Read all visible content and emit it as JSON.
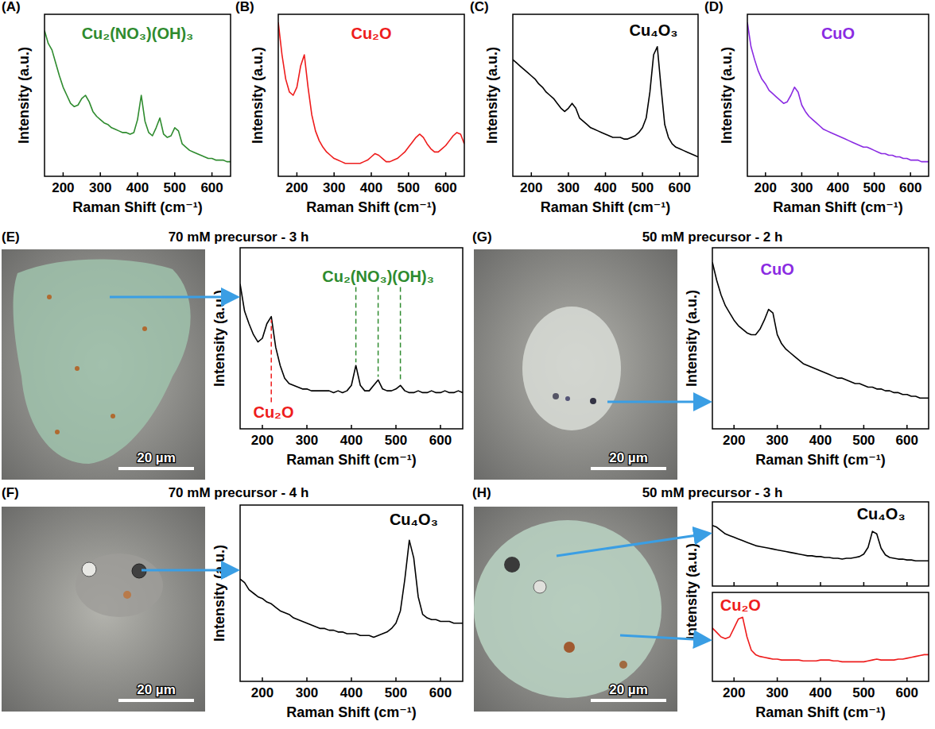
{
  "chart_data": [
    {
      "type": "line",
      "x": [
        150,
        160,
        170,
        180,
        190,
        200,
        210,
        220,
        230,
        240,
        250,
        260,
        270,
        280,
        290,
        300,
        310,
        320,
        330,
        340,
        350,
        360,
        370,
        380,
        390,
        400,
        410,
        420,
        430,
        440,
        450,
        460,
        470,
        480,
        490,
        500,
        510,
        520,
        530,
        540,
        550,
        560,
        570,
        580,
        590,
        600,
        610,
        620,
        630,
        640,
        650
      ],
      "xlim": [
        150,
        650
      ],
      "ylim": [
        0,
        100
      ],
      "xticks": [
        200,
        300,
        400,
        500,
        600
      ],
      "tick_labels": "x",
      "x_label": "Raman Shift (cm⁻¹)",
      "y_label": "Intensity (a.u.)",
      "series": [
        {
          "color": "#2e8b2e",
          "values": [
            90,
            82,
            78,
            70,
            62,
            55,
            50,
            45,
            43,
            44,
            48,
            50,
            46,
            40,
            37,
            35,
            33,
            32,
            30,
            29,
            28,
            27,
            27,
            26,
            27,
            35,
            50,
            34,
            27,
            25,
            30,
            36,
            26,
            24,
            25,
            30,
            28,
            20,
            18,
            16,
            15,
            14,
            13,
            12,
            11,
            11,
            10,
            10,
            10,
            9,
            9
          ]
        }
      ],
      "annotations": [
        {
          "text": "Cu₂(NO₃)(OH)₃",
          "color": "#2e8b2e",
          "x": 400,
          "y": 88
        }
      ]
    },
    {
      "type": "line",
      "x": [
        150,
        160,
        170,
        180,
        190,
        200,
        210,
        220,
        230,
        240,
        250,
        260,
        270,
        280,
        290,
        300,
        310,
        320,
        330,
        340,
        350,
        360,
        370,
        380,
        390,
        400,
        410,
        420,
        430,
        440,
        450,
        460,
        470,
        480,
        490,
        500,
        510,
        520,
        530,
        540,
        550,
        560,
        570,
        580,
        590,
        600,
        610,
        620,
        630,
        640,
        650
      ],
      "xlim": [
        150,
        650
      ],
      "ylim": [
        0,
        100
      ],
      "xticks": [
        200,
        300,
        400,
        500,
        600
      ],
      "tick_labels": "x",
      "x_label": "Raman Shift (cm⁻¹)",
      "y_label": "Intensity (a.u.)",
      "series": [
        {
          "color": "#ee1c1c",
          "values": [
            95,
            75,
            60,
            52,
            50,
            55,
            68,
            75,
            55,
            38,
            28,
            22,
            18,
            15,
            13,
            11,
            10,
            9,
            8,
            8,
            8,
            8,
            8,
            9,
            10,
            12,
            14,
            13,
            11,
            9,
            9,
            10,
            11,
            13,
            15,
            18,
            21,
            24,
            26,
            24,
            20,
            17,
            15,
            15,
            17,
            19,
            22,
            25,
            27,
            26,
            20
          ]
        }
      ],
      "annotations": [
        {
          "text": "Cu₂O",
          "color": "#ee1c1c",
          "x": 400,
          "y": 88
        }
      ]
    },
    {
      "type": "line",
      "x": [
        150,
        160,
        170,
        180,
        190,
        200,
        210,
        220,
        230,
        240,
        250,
        260,
        270,
        280,
        290,
        300,
        310,
        320,
        330,
        340,
        350,
        360,
        370,
        380,
        390,
        400,
        410,
        420,
        430,
        440,
        450,
        460,
        470,
        480,
        490,
        500,
        510,
        520,
        530,
        540,
        550,
        560,
        570,
        580,
        590,
        600,
        610,
        620,
        630,
        640,
        650
      ],
      "xlim": [
        150,
        650
      ],
      "ylim": [
        0,
        100
      ],
      "xticks": [
        200,
        300,
        400,
        500,
        600
      ],
      "tick_labels": "x",
      "x_label": "Raman Shift (cm⁻¹)",
      "y_label": "Intensity (a.u.)",
      "series": [
        {
          "color": "#000000",
          "values": [
            72,
            70,
            68,
            66,
            64,
            62,
            60,
            57,
            55,
            52,
            50,
            48,
            45,
            42,
            40,
            42,
            45,
            42,
            36,
            34,
            32,
            30,
            29,
            28,
            27,
            26,
            25,
            24,
            24,
            24,
            23,
            23,
            24,
            25,
            27,
            30,
            36,
            52,
            75,
            80,
            55,
            32,
            24,
            20,
            18,
            17,
            16,
            15,
            14,
            13,
            12
          ]
        }
      ],
      "annotations": [
        {
          "text": "Cu₄O₃",
          "color": "#000000",
          "x": 530,
          "y": 90
        }
      ]
    },
    {
      "type": "line",
      "x": [
        150,
        160,
        170,
        180,
        190,
        200,
        210,
        220,
        230,
        240,
        250,
        260,
        270,
        280,
        290,
        300,
        310,
        320,
        330,
        340,
        350,
        360,
        370,
        380,
        390,
        400,
        410,
        420,
        430,
        440,
        450,
        460,
        470,
        480,
        490,
        500,
        510,
        520,
        530,
        540,
        550,
        560,
        570,
        580,
        590,
        600,
        610,
        620,
        630,
        640,
        650
      ],
      "xlim": [
        150,
        650
      ],
      "ylim": [
        0,
        100
      ],
      "xticks": [
        200,
        300,
        400,
        500,
        600
      ],
      "tick_labels": "x",
      "x_label": "Raman Shift (cm⁻¹)",
      "y_label": "Intensity (a.u.)",
      "series": [
        {
          "color": "#8a2be2",
          "values": [
            95,
            80,
            72,
            65,
            60,
            57,
            53,
            51,
            49,
            47,
            45,
            46,
            50,
            55,
            52,
            44,
            40,
            37,
            35,
            33,
            31,
            29,
            28,
            27,
            26,
            25,
            24,
            23,
            22,
            21,
            20,
            19,
            18,
            18,
            17,
            16,
            15,
            14,
            14,
            13,
            13,
            12,
            12,
            11,
            11,
            10,
            10,
            10,
            9,
            9,
            9
          ]
        }
      ],
      "annotations": [
        {
          "text": "CuO",
          "color": "#8a2be2",
          "x": 400,
          "y": 88
        }
      ]
    },
    {
      "type": "line",
      "x": [
        150,
        160,
        170,
        180,
        190,
        200,
        210,
        220,
        230,
        240,
        250,
        260,
        270,
        280,
        290,
        300,
        310,
        320,
        330,
        340,
        350,
        360,
        370,
        380,
        390,
        400,
        410,
        420,
        430,
        440,
        450,
        460,
        470,
        480,
        490,
        500,
        510,
        520,
        530,
        540,
        550,
        560,
        570,
        580,
        590,
        600,
        610,
        620,
        630,
        640,
        650
      ],
      "xlim": [
        150,
        650
      ],
      "ylim": [
        0,
        100
      ],
      "xticks": [
        200,
        300,
        400,
        500,
        600
      ],
      "tick_labels": "x",
      "x_label": "Raman Shift (cm⁻¹)",
      "y_label": "Intensity (a.u.)",
      "series": [
        {
          "color": "#000000",
          "values": [
            80,
            65,
            58,
            52,
            48,
            50,
            58,
            62,
            45,
            35,
            28,
            25,
            24,
            23,
            22,
            22,
            21,
            21,
            21,
            21,
            21,
            20,
            21,
            20,
            21,
            24,
            35,
            24,
            21,
            21,
            24,
            27,
            22,
            21,
            21,
            22,
            24,
            21,
            20,
            20,
            21,
            20,
            20,
            21,
            20,
            20,
            21,
            20,
            20,
            21,
            20
          ]
        }
      ],
      "annotations": [
        {
          "text": "Cu₂(NO₃)(OH)₃",
          "color": "#2e8b2e",
          "x": 460,
          "y": 84,
          "lines": [
            410,
            460,
            510
          ]
        },
        {
          "text": "Cu₂O",
          "color": "#ee1c1c",
          "x": 225,
          "y": 9,
          "lines": [
            220
          ]
        }
      ]
    },
    {
      "type": "line",
      "x": [
        150,
        160,
        170,
        180,
        190,
        200,
        210,
        220,
        230,
        240,
        250,
        260,
        270,
        280,
        290,
        300,
        310,
        320,
        330,
        340,
        350,
        360,
        370,
        380,
        390,
        400,
        410,
        420,
        430,
        440,
        450,
        460,
        470,
        480,
        490,
        500,
        510,
        520,
        530,
        540,
        550,
        560,
        570,
        580,
        590,
        600,
        610,
        620,
        630,
        640,
        650
      ],
      "xlim": [
        150,
        650
      ],
      "ylim": [
        0,
        100
      ],
      "xticks": [
        200,
        300,
        400,
        500,
        600
      ],
      "tick_labels": "x",
      "x_label": "Raman Shift (cm⁻¹)",
      "y_label": "Intensity (a.u.)",
      "series": [
        {
          "color": "#000000",
          "values": [
            58,
            56,
            52,
            50,
            48,
            47,
            45,
            44,
            42,
            40,
            39,
            38,
            36,
            35,
            34,
            33,
            32,
            31,
            30,
            30,
            29,
            29,
            28,
            28,
            27,
            27,
            27,
            26,
            26,
            26,
            25,
            26,
            27,
            28,
            30,
            33,
            40,
            58,
            80,
            70,
            48,
            38,
            36,
            35,
            35,
            34,
            34,
            34,
            33,
            33,
            33
          ]
        }
      ],
      "annotations": [
        {
          "text": "Cu₄O₃",
          "color": "#000000",
          "x": 540,
          "y": 92
        }
      ]
    },
    {
      "type": "line",
      "x": [
        150,
        160,
        170,
        180,
        190,
        200,
        210,
        220,
        230,
        240,
        250,
        260,
        270,
        280,
        290,
        300,
        310,
        320,
        330,
        340,
        350,
        360,
        370,
        380,
        390,
        400,
        410,
        420,
        430,
        440,
        450,
        460,
        470,
        480,
        490,
        500,
        510,
        520,
        530,
        540,
        550,
        560,
        570,
        580,
        590,
        600,
        610,
        620,
        630,
        640,
        650
      ],
      "xlim": [
        150,
        650
      ],
      "ylim": [
        0,
        100
      ],
      "xticks": [
        200,
        300,
        400,
        500,
        600
      ],
      "tick_labels": "x",
      "x_label": "Raman Shift (cm⁻¹)",
      "y_label": "Intensity (a.u.)",
      "series": [
        {
          "color": "#000000",
          "values": [
            92,
            82,
            74,
            68,
            64,
            60,
            57,
            55,
            53,
            52,
            52,
            55,
            60,
            66,
            64,
            52,
            47,
            44,
            42,
            40,
            38,
            36,
            35,
            34,
            33,
            32,
            31,
            30,
            29,
            28,
            28,
            27,
            26,
            25,
            25,
            24,
            23,
            23,
            22,
            22,
            21,
            21,
            20,
            20,
            19,
            19,
            18,
            18,
            17,
            17,
            17
          ]
        }
      ],
      "annotations": [
        {
          "text": "CuO",
          "color": "#8a2be2",
          "x": 300,
          "y": 88
        }
      ]
    },
    {
      "type": "line",
      "x": [
        150,
        160,
        170,
        180,
        190,
        200,
        210,
        220,
        230,
        240,
        250,
        260,
        270,
        280,
        290,
        300,
        310,
        320,
        330,
        340,
        350,
        360,
        370,
        380,
        390,
        400,
        410,
        420,
        430,
        440,
        450,
        460,
        470,
        480,
        490,
        500,
        510,
        520,
        530,
        540,
        550,
        560,
        570,
        580,
        590,
        600,
        610,
        620,
        630,
        640,
        650
      ],
      "xlim": [
        150,
        650
      ],
      "ylim": [
        0,
        100
      ],
      "xticks": [
        200,
        300,
        400,
        500,
        600
      ],
      "tick_labels": false,
      "series": [
        {
          "color": "#000000",
          "values": [
            72,
            70,
            66,
            62,
            60,
            58,
            56,
            54,
            52,
            50,
            48,
            47,
            46,
            45,
            44,
            43,
            42,
            41,
            40,
            39,
            38,
            37,
            36,
            36,
            35,
            35,
            34,
            34,
            33,
            33,
            32,
            33,
            33,
            34,
            35,
            38,
            46,
            65,
            62,
            45,
            37,
            34,
            33,
            32,
            32,
            31,
            31,
            30,
            30,
            30,
            30
          ]
        }
      ],
      "annotations": [
        {
          "text": "Cu₄O₃",
          "color": "#000000",
          "x": 540,
          "y": 86
        }
      ]
    },
    {
      "type": "line",
      "x": [
        150,
        160,
        170,
        180,
        190,
        200,
        210,
        220,
        230,
        240,
        250,
        260,
        270,
        280,
        290,
        300,
        310,
        320,
        330,
        340,
        350,
        360,
        370,
        380,
        390,
        400,
        410,
        420,
        430,
        440,
        450,
        460,
        470,
        480,
        490,
        500,
        510,
        520,
        530,
        540,
        550,
        560,
        570,
        580,
        590,
        600,
        610,
        620,
        630,
        640,
        650
      ],
      "xlim": [
        150,
        650
      ],
      "ylim": [
        0,
        100
      ],
      "xticks": [
        200,
        300,
        400,
        500,
        600
      ],
      "tick_labels": "x",
      "x_label": "Raman Shift (cm⁻¹)",
      "y_label": "Intensity (a.u.)",
      "series": [
        {
          "color": "#ee1c1c",
          "values": [
            60,
            55,
            50,
            48,
            50,
            60,
            70,
            72,
            50,
            35,
            30,
            28,
            27,
            26,
            25,
            25,
            24,
            24,
            24,
            24,
            24,
            23,
            23,
            23,
            23,
            24,
            24,
            24,
            23,
            23,
            22,
            22,
            22,
            22,
            22,
            22,
            23,
            24,
            25,
            24,
            24,
            24,
            24,
            25,
            25,
            26,
            27,
            28,
            29,
            30,
            30
          ]
        }
      ],
      "annotations": [
        {
          "text": "Cu₂O",
          "color": "#ee1c1c",
          "x": 215,
          "y": 86
        }
      ]
    }
  ],
  "figure": {
    "letters": [
      "(A)",
      "(B)",
      "(C)",
      "(D)",
      "(E)",
      "(F)",
      "(G)",
      "(H)"
    ],
    "images": [
      {
        "title": "70 mM precursor - 3 h",
        "scale": "20 µm"
      },
      {
        "title": "70 mM precursor - 4 h",
        "scale": "20 µm"
      },
      {
        "title": "50 mM precursor - 2 h",
        "scale": "20 µm"
      },
      {
        "title": "50 mM precursor - 3 h",
        "scale": "20 µm"
      }
    ]
  }
}
